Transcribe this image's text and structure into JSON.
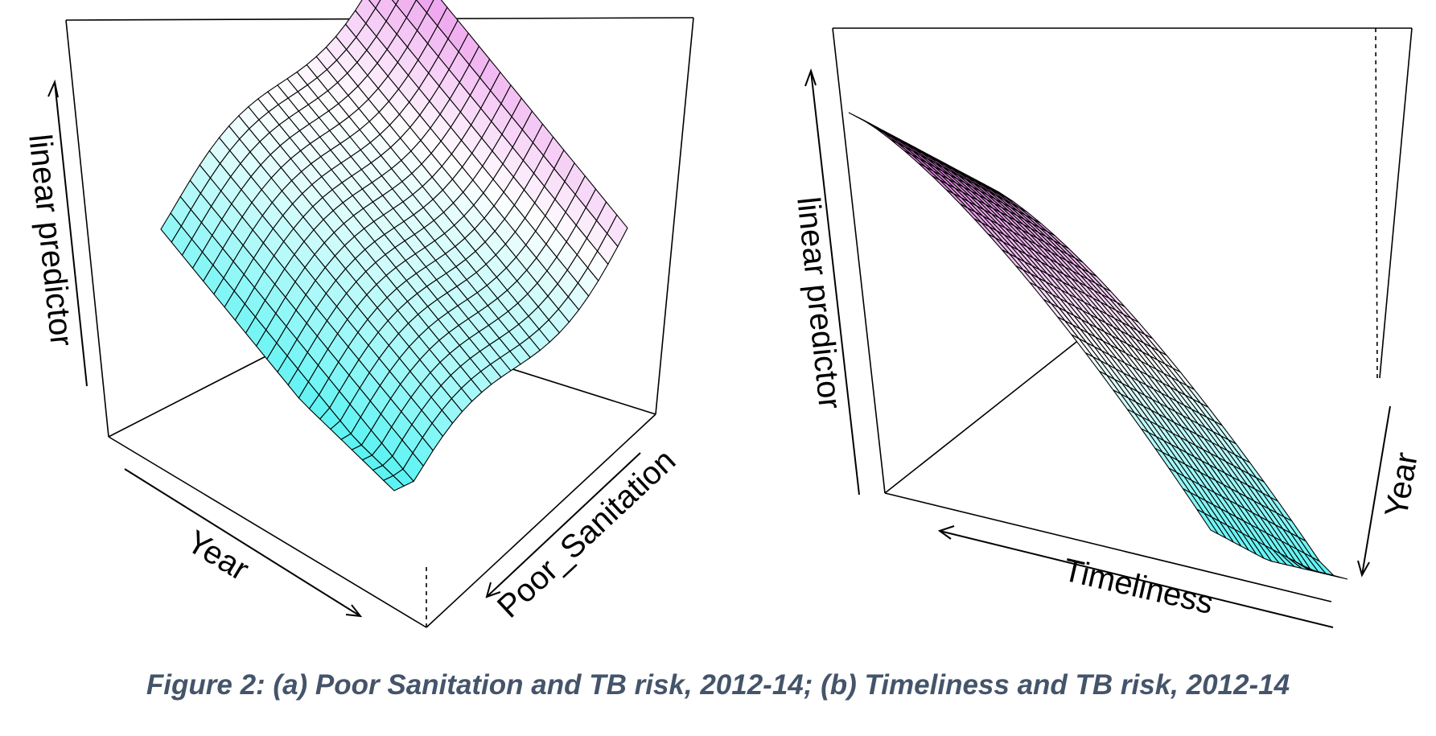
{
  "caption": "Figure 2: (a) Poor Sanitation and TB risk, 2012-14; (b) Timeliness and TB risk, 2012-14",
  "colors": {
    "low": "#5ef3f3",
    "mid": "#ffffff",
    "high": "#e36de3",
    "mesh": "#000000"
  },
  "chart_data": [
    {
      "type": "surface",
      "panel": "a",
      "x_label": "Year",
      "y_label": "Poor_Sanitation",
      "z_label": "linear predictor",
      "grid": true
    },
    {
      "type": "surface",
      "panel": "b",
      "x_label": "Timeliness",
      "y_label": "Year",
      "z_label": "linear predictor",
      "grid": true
    }
  ]
}
